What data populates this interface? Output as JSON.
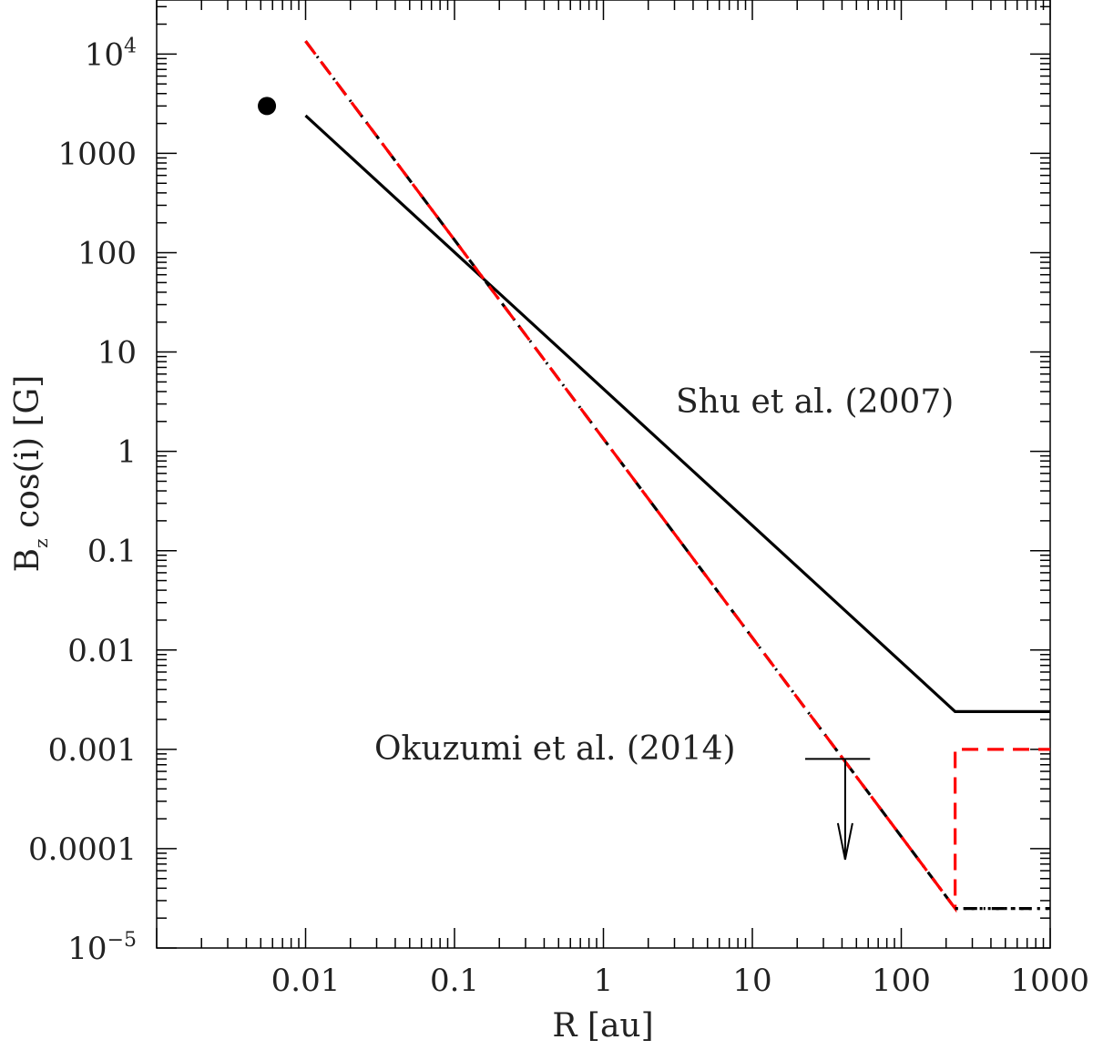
{
  "chart_data": {
    "type": "line",
    "xscale": "log",
    "yscale": "log",
    "xlabel": "R [au]",
    "ylabel_main": "B",
    "ylabel_sub": "z",
    "ylabel_rest": " cos(i) [G]",
    "xlim": [
      0.001,
      1000
    ],
    "ylim": [
      1e-05,
      35000
    ],
    "xticks": [
      {
        "value": 0.01,
        "label": "0.01"
      },
      {
        "value": 0.1,
        "label": "0.1"
      },
      {
        "value": 1,
        "label": "1"
      },
      {
        "value": 10,
        "label": "10"
      },
      {
        "value": 100,
        "label": "100"
      },
      {
        "value": 1000,
        "label": "1000"
      }
    ],
    "yticks": [
      {
        "value": 10000,
        "label": "10",
        "sup": "4"
      },
      {
        "value": 1000,
        "label": "1000",
        "sup": ""
      },
      {
        "value": 100,
        "label": "100",
        "sup": ""
      },
      {
        "value": 10,
        "label": "10",
        "sup": ""
      },
      {
        "value": 1,
        "label": "1",
        "sup": ""
      },
      {
        "value": 0.1,
        "label": "0.1",
        "sup": ""
      },
      {
        "value": 0.01,
        "label": "0.01",
        "sup": ""
      },
      {
        "value": 0.001,
        "label": "0.001",
        "sup": ""
      },
      {
        "value": 0.0001,
        "label": "0.0001",
        "sup": ""
      },
      {
        "value": 1e-05,
        "label": "10",
        "sup": "−5"
      }
    ],
    "series": [
      {
        "name": "shu-solid",
        "color": "#000000",
        "style": "solid",
        "x": [
          0.01,
          230,
          1000
        ],
        "y": [
          2400,
          0.0024,
          0.0024
        ]
      },
      {
        "name": "okuzumi-dashdot",
        "color": "#000000",
        "style": "dashdot",
        "x": [
          0.01,
          230,
          1000
        ],
        "y": [
          13500,
          2.5e-05,
          2.5e-05
        ]
      },
      {
        "name": "red-dashed",
        "color": "#ff0000",
        "style": "dashed",
        "x": [
          0.01,
          230,
          230,
          1000
        ],
        "y": [
          13500,
          2.5e-05,
          0.001,
          0.001
        ]
      },
      {
        "name": "dotted-floor",
        "color": "#000000",
        "style": "dotted",
        "x": [
          230,
          1000
        ],
        "y": [
          2.5e-05,
          2.5e-05
        ]
      }
    ],
    "point": {
      "x": 0.0055,
      "y": 3000
    },
    "upper_limit": {
      "x": 42,
      "y": 0.0008,
      "x_lo": 30,
      "x_hi": 60,
      "arrow_to": 0.0001
    },
    "annotations": [
      {
        "id": "shu",
        "text": "Shu et al. (2007)",
        "x": 28,
        "y": 3
      },
      {
        "id": "okuzumi",
        "text": "Okuzumi et al. (2014)",
        "x": 3.5,
        "y": 0.001
      }
    ]
  }
}
